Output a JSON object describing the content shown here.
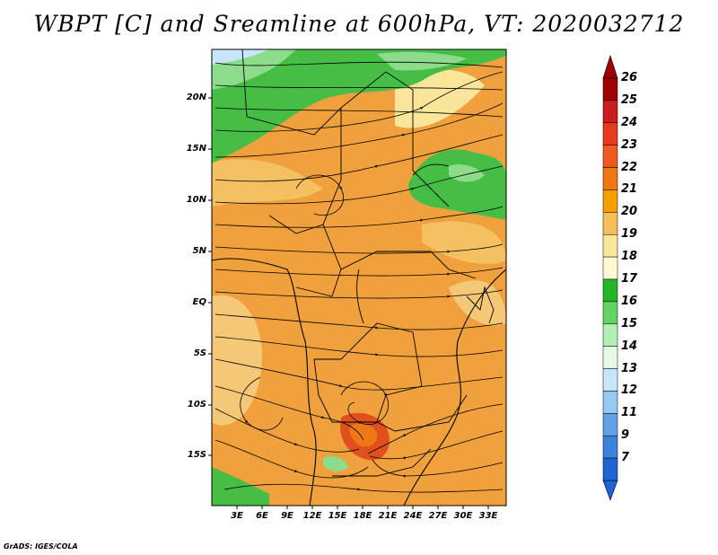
{
  "title": "WBPT [C] and Sreamline at 600hPa, VT: 2020032712",
  "footer": "GrADS: IGES/COLA",
  "map": {
    "lat_labels": [
      "20N",
      "15N",
      "10N",
      "5N",
      "EQ",
      "5S",
      "10S",
      "15S"
    ],
    "lon_labels": [
      "3E",
      "6E",
      "9E",
      "12E",
      "15E",
      "18E",
      "21E",
      "24E",
      "27E",
      "30E",
      "33E"
    ]
  },
  "colorbar": {
    "labels": [
      "26",
      "25",
      "24",
      "23",
      "22",
      "21",
      "20",
      "19",
      "18",
      "17",
      "16",
      "15",
      "14",
      "13",
      "12",
      "11",
      "9",
      "7"
    ],
    "colors": [
      "#a00000",
      "#c81e1e",
      "#e63c1e",
      "#f05a1e",
      "#f07814",
      "#f5a000",
      "#f5c05a",
      "#fae69b",
      "#fffad2",
      "#28b428",
      "#64d264",
      "#b4f0b4",
      "#e6fae6",
      "#c8e6fa",
      "#96c8f0",
      "#64a0e6",
      "#3c82dc",
      "#1e64d2"
    ]
  },
  "colors": {
    "orange_field": "#f0a03c",
    "light_orange": "#f5c878",
    "green": "#46be46",
    "light_green": "#8cdc8c",
    "red_max": "#e0501e"
  }
}
